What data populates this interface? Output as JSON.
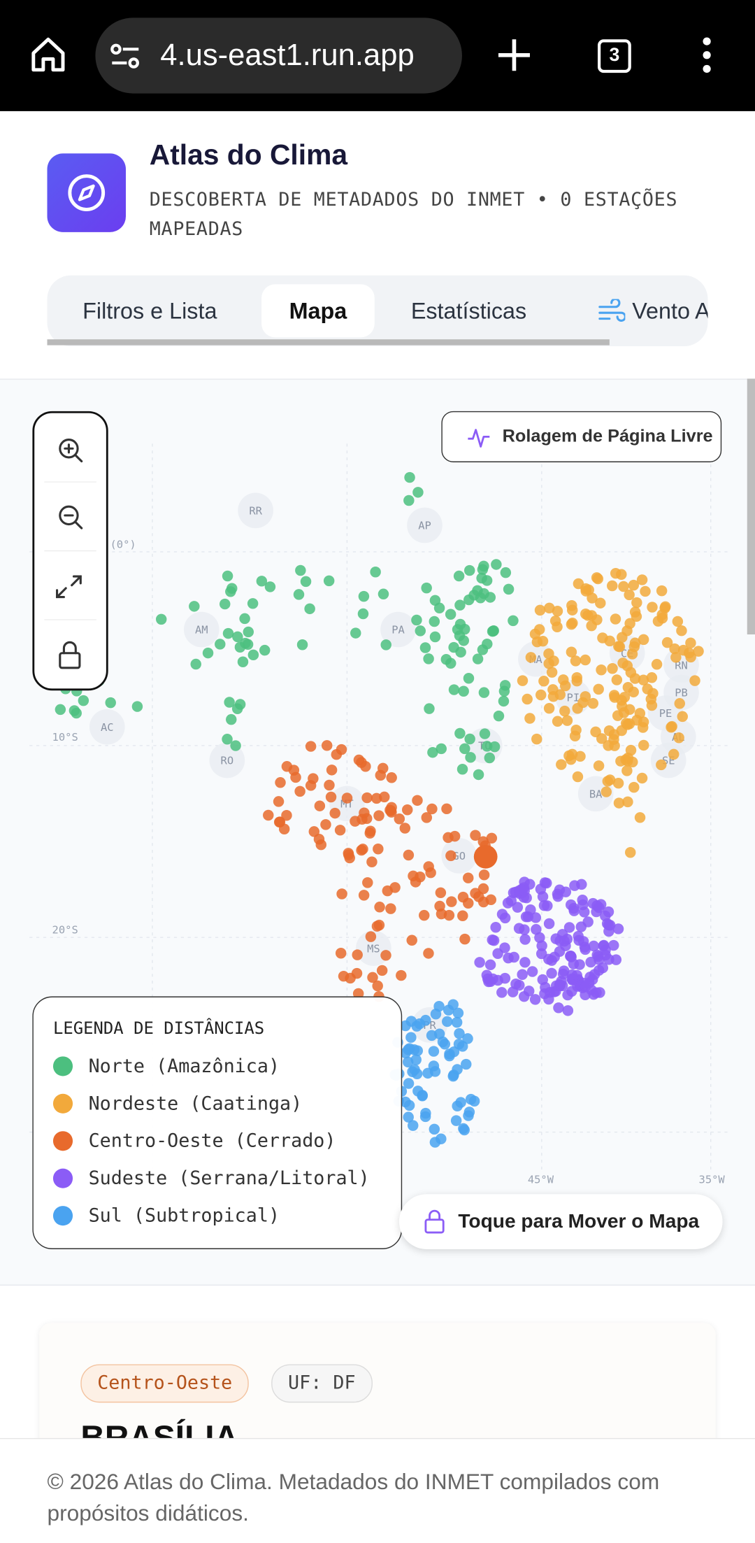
{
  "browser": {
    "url": "4.us-east1.run.app",
    "tab_count": "3"
  },
  "header": {
    "title": "Atlas do Clima",
    "subtitle": "DESCOBERTA DE METADADOS DO INMET • 0 ESTAÇÕES MAPEADAS"
  },
  "tabs": [
    "Filtros e Lista",
    "Mapa",
    "Estatísticas",
    "Vento A"
  ],
  "map": {
    "scroll_button": "Rolagem de Página Livre",
    "state_labels": [
      "RR",
      "AP",
      "AM",
      "PA",
      "MA",
      "CE",
      "RN",
      "PB",
      "PE",
      "AL",
      "SE",
      "PI",
      "AC",
      "RO",
      "TO",
      "BA",
      "MT",
      "GO",
      "MS",
      "PR"
    ],
    "axis_labels": [
      "(0°)",
      "10°S",
      "20°S",
      "45°W",
      "35°W"
    ],
    "legend": {
      "title": "LEGENDA DE DISTÂNCIAS",
      "items": [
        {
          "label": "Norte (Amazônica)",
          "color": "#4cbf7f"
        },
        {
          "label": "Nordeste (Caatinga)",
          "color": "#f2a93b"
        },
        {
          "label": "Centro-Oeste (Cerrado)",
          "color": "#e86a2c"
        },
        {
          "label": "Sudeste (Serrana/Litoral)",
          "color": "#8b5cf6"
        },
        {
          "label": "Sul (Subtropical)",
          "color": "#4aa3f0"
        }
      ]
    },
    "move_button": "Toque para Mover o Mapa"
  },
  "card": {
    "region": "Centro-Oeste",
    "uf": "UF: DF",
    "name": "BRASÍLIA"
  },
  "footer": "© 2026 Atlas do Clima. Metadados do INMET compilados com propósitos didáticos."
}
